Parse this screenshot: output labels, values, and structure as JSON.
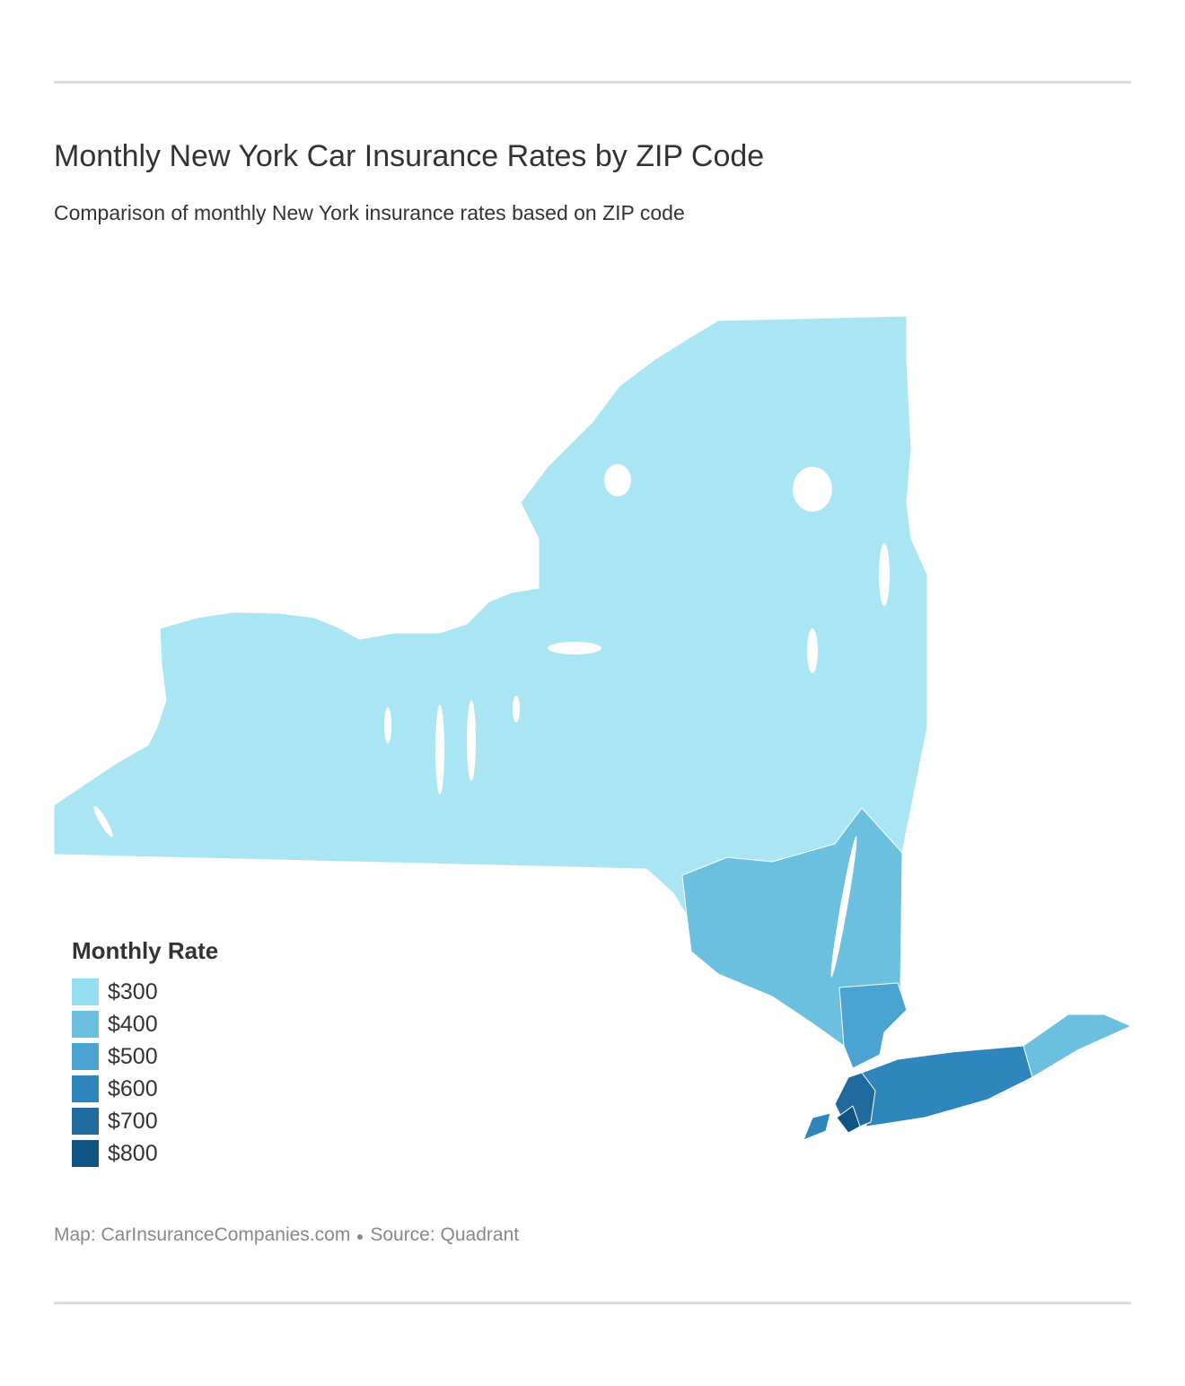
{
  "header": {
    "title": "Monthly New York Car Insurance Rates by ZIP Code",
    "subtitle": "Comparison of monthly New York insurance rates based on ZIP code"
  },
  "legend": {
    "title": "Monthly Rate",
    "items": [
      {
        "label": "$300",
        "color": "#93dff0"
      },
      {
        "label": "$400",
        "color": "#6bc0e0"
      },
      {
        "label": "$500",
        "color": "#4aa3d0"
      },
      {
        "label": "$600",
        "color": "#2e86bd"
      },
      {
        "label": "$700",
        "color": "#1f6b9e"
      },
      {
        "label": "$800",
        "color": "#0f5583"
      }
    ]
  },
  "footer": {
    "credit": "Map: CarInsuranceCompanies.com",
    "source": "Source: Quadrant"
  }
}
